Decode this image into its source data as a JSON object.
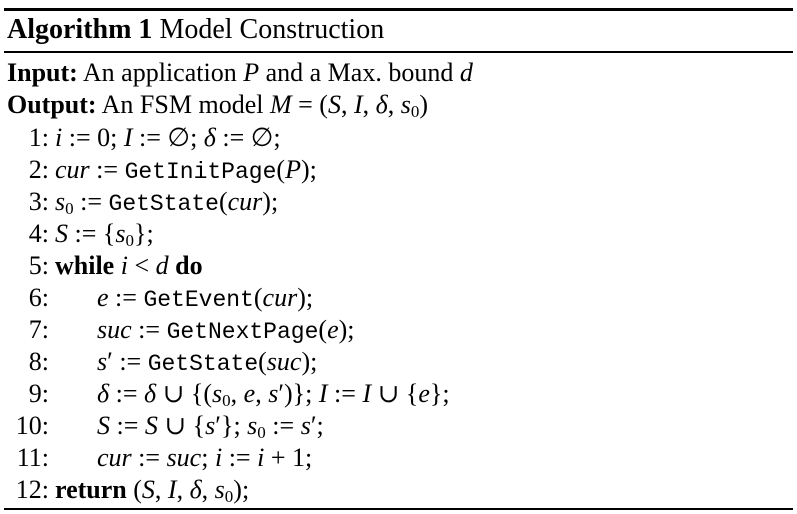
{
  "algorithm": {
    "title_label": "Algorithm 1",
    "title_text": "Model Construction",
    "input_label": "Input:",
    "input_text": "An application P and a Max. bound d",
    "output_label": "Output:",
    "output_text": "An FSM model M = (S, I, δ, s0)",
    "lines": [
      {
        "no": "1:",
        "text": "i := 0; I := ∅; δ := ∅;"
      },
      {
        "no": "2:",
        "text": "cur := GetInitPage(P);"
      },
      {
        "no": "3:",
        "text": "s0 := GetState(cur);"
      },
      {
        "no": "4:",
        "text": "S := {s0};"
      },
      {
        "no": "5:",
        "text": "while i < d do"
      },
      {
        "no": "6:",
        "text": "e := GetEvent(cur);"
      },
      {
        "no": "7:",
        "text": "suc := GetNextPage(e);"
      },
      {
        "no": "8:",
        "text": "s′ := GetState(suc);"
      },
      {
        "no": "9:",
        "text": "δ := δ ∪ {(s0, e, s′)}; I := I ∪ {e};"
      },
      {
        "no": "10:",
        "text": "S := S ∪ {s′}; s0 := s′;"
      },
      {
        "no": "11:",
        "text": "cur := suc; i := i + 1;"
      },
      {
        "no": "12:",
        "text": "return (S, I, δ, s0);"
      }
    ]
  }
}
